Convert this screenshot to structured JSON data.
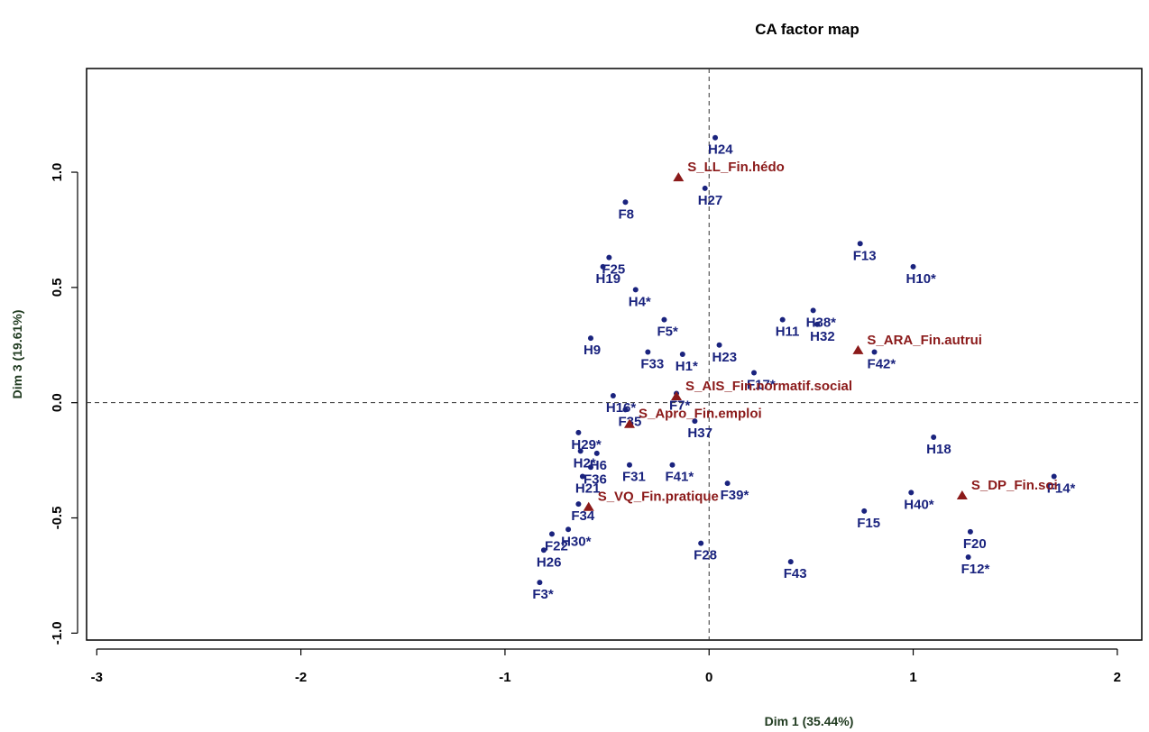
{
  "chart_data": {
    "type": "scatter",
    "title": "CA factor map",
    "xlabel": "Dim 1 (35.44%)",
    "ylabel": "Dim 3 (19.61%)",
    "xlim": [
      -3.05,
      2.12
    ],
    "ylim": [
      -1.03,
      1.45
    ],
    "xticks": [
      -3,
      -2,
      -1,
      0,
      1,
      2
    ],
    "yticks": [
      -1.0,
      -0.5,
      0.0,
      0.5,
      1.0
    ],
    "xtick_labels": [
      "-3",
      "-2",
      "-1",
      "0",
      "1",
      "2"
    ],
    "ytick_labels": [
      "-1.0",
      "-0.5",
      "0.0",
      "0.5",
      "1.0"
    ],
    "grid": false,
    "reference_lines": {
      "x": 0,
      "y": 0,
      "style": "dashed"
    },
    "colors": {
      "rows": "#1a237e",
      "columns": "#8b1a1a",
      "axis": "#000000"
    },
    "series": [
      {
        "marker": "circle",
        "color": "#1a237e",
        "points": [
          {
            "label": "H24",
            "x": 0.03,
            "y": 1.15
          },
          {
            "label": "H27",
            "x": -0.02,
            "y": 0.93
          },
          {
            "label": "F8",
            "x": -0.41,
            "y": 0.87
          },
          {
            "label": "F13",
            "x": 0.74,
            "y": 0.69
          },
          {
            "label": "H10*",
            "x": 1.0,
            "y": 0.59
          },
          {
            "label": "H19",
            "x": -0.52,
            "y": 0.59
          },
          {
            "label": "F25",
            "x": -0.49,
            "y": 0.63
          },
          {
            "label": "H4*",
            "x": -0.36,
            "y": 0.49
          },
          {
            "label": "F5*",
            "x": -0.22,
            "y": 0.36
          },
          {
            "label": "H11",
            "x": 0.36,
            "y": 0.36
          },
          {
            "label": "H38*",
            "x": 0.51,
            "y": 0.4
          },
          {
            "label": "H32",
            "x": 0.53,
            "y": 0.34
          },
          {
            "label": "H9",
            "x": -0.58,
            "y": 0.28
          },
          {
            "label": "H1*",
            "x": -0.13,
            "y": 0.21
          },
          {
            "label": "F33",
            "x": -0.3,
            "y": 0.22
          },
          {
            "label": "H23",
            "x": 0.05,
            "y": 0.25
          },
          {
            "label": "F17*",
            "x": 0.22,
            "y": 0.13
          },
          {
            "label": "F42*",
            "x": 0.81,
            "y": 0.22
          },
          {
            "label": "H16*",
            "x": -0.47,
            "y": 0.03
          },
          {
            "label": "F7*",
            "x": -0.16,
            "y": 0.04
          },
          {
            "label": "F35",
            "x": -0.41,
            "y": -0.03
          },
          {
            "label": "H37",
            "x": -0.07,
            "y": -0.08
          },
          {
            "label": "H29*",
            "x": -0.64,
            "y": -0.13
          },
          {
            "label": "H2*",
            "x": -0.63,
            "y": -0.21
          },
          {
            "label": "H6",
            "x": -0.55,
            "y": -0.22
          },
          {
            "label": "H18",
            "x": 1.1,
            "y": -0.15
          },
          {
            "label": "F14*",
            "x": 1.69,
            "y": -0.32
          },
          {
            "label": "F36",
            "x": -0.58,
            "y": -0.28
          },
          {
            "label": "F31",
            "x": -0.39,
            "y": -0.27
          },
          {
            "label": "F41*",
            "x": -0.18,
            "y": -0.27
          },
          {
            "label": "F39*",
            "x": 0.09,
            "y": -0.35
          },
          {
            "label": "H21",
            "x": -0.62,
            "y": -0.32
          },
          {
            "label": "H40*",
            "x": 0.99,
            "y": -0.39
          },
          {
            "label": "F34",
            "x": -0.64,
            "y": -0.44
          },
          {
            "label": "F15",
            "x": 0.76,
            "y": -0.47
          },
          {
            "label": "F22",
            "x": -0.77,
            "y": -0.57
          },
          {
            "label": "H30*",
            "x": -0.69,
            "y": -0.55
          },
          {
            "label": "F20",
            "x": 1.28,
            "y": -0.56
          },
          {
            "label": "F28",
            "x": -0.04,
            "y": -0.61
          },
          {
            "label": "H26",
            "x": -0.81,
            "y": -0.64
          },
          {
            "label": "F12*",
            "x": 1.27,
            "y": -0.67
          },
          {
            "label": "F43",
            "x": 0.4,
            "y": -0.69
          },
          {
            "label": "F3*",
            "x": -0.83,
            "y": -0.78
          }
        ]
      },
      {
        "marker": "triangle",
        "color": "#8b1a1a",
        "points": [
          {
            "label": "S_LL_Fin.hédo",
            "x": -0.15,
            "y": 0.98
          },
          {
            "label": "S_ARA_Fin.autrui",
            "x": 0.73,
            "y": 0.23
          },
          {
            "label": "S_AIS_Fin.normatif.social",
            "x": -0.16,
            "y": 0.03
          },
          {
            "label": "S_Apro_Fin.emploi",
            "x": -0.39,
            "y": -0.09
          },
          {
            "label": "S_DP_Fin.soi",
            "x": 1.24,
            "y": -0.4
          },
          {
            "label": "S_VQ_Fin.pratique",
            "x": -0.59,
            "y": -0.45
          }
        ]
      }
    ]
  }
}
